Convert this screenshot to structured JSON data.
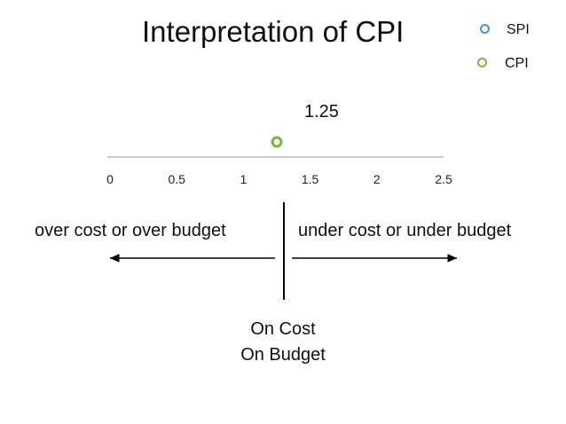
{
  "slide": {
    "title": "Interpretation of CPI",
    "center_lines": [
      "On Cost",
      "On Budget"
    ],
    "left_text": "over cost or over budget",
    "right_text": "under cost or under budget"
  },
  "legend": [
    {
      "label": "SPI",
      "color": "#4a90e2",
      "icon": "hollow-circle-icon"
    },
    {
      "label": "CPI",
      "color": "#7ab648",
      "icon": "hollow-circle-icon"
    }
  ],
  "chart_data": {
    "type": "scatter",
    "title": "Interpretation of CPI",
    "xlim": [
      0,
      2.5
    ],
    "ticks": [
      "0",
      "0.5",
      "1",
      "1.5",
      "2",
      "2.5"
    ],
    "tick_values": [
      0,
      0.5,
      1,
      1.5,
      2,
      2.5
    ],
    "series": [
      {
        "name": "CPI",
        "x": [
          1.25
        ],
        "color": "#7ab648",
        "data_label": "1.25"
      }
    ],
    "reference_value": 1,
    "grid": false,
    "legend_position": "top-right"
  }
}
